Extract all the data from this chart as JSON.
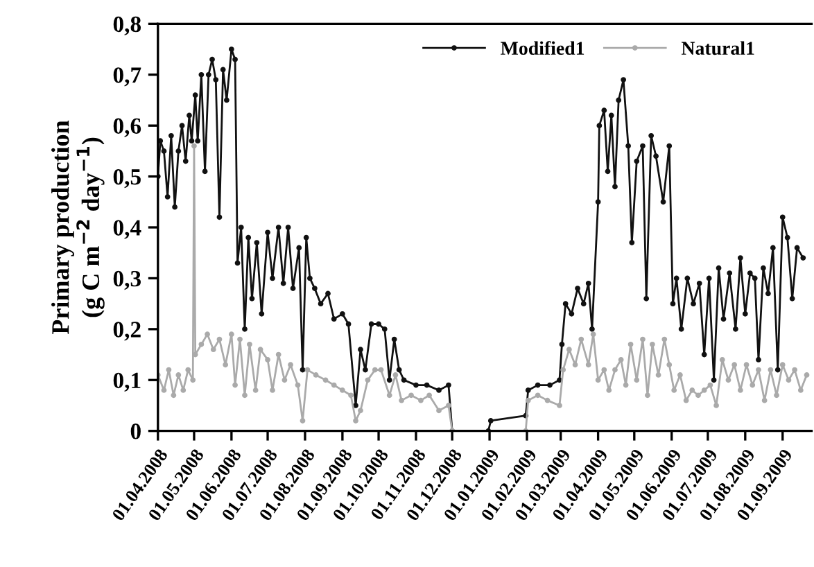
{
  "chart_data": {
    "type": "line",
    "ylabel": "Primary production\n(g C m$^{−2}$ day$^{−1}$)",
    "series": [
      {
        "name": "Modified1",
        "color": "#111111",
        "x": [
          "2008-04-01",
          "2008-04-03",
          "2008-04-06",
          "2008-04-09",
          "2008-04-12",
          "2008-04-15",
          "2008-04-18",
          "2008-04-21",
          "2008-04-24",
          "2008-04-27",
          "2008-04-29",
          "2008-05-02",
          "2008-05-04",
          "2008-05-07",
          "2008-05-10",
          "2008-05-13",
          "2008-05-16",
          "2008-05-19",
          "2008-05-22",
          "2008-05-25",
          "2008-05-28",
          "2008-06-01",
          "2008-06-04",
          "2008-06-06",
          "2008-06-09",
          "2008-06-12",
          "2008-06-15",
          "2008-06-18",
          "2008-06-22",
          "2008-06-26",
          "2008-07-01",
          "2008-07-05",
          "2008-07-10",
          "2008-07-14",
          "2008-07-18",
          "2008-07-22",
          "2008-07-27",
          "2008-07-30",
          "2008-08-02",
          "2008-08-05",
          "2008-08-09",
          "2008-08-14",
          "2008-08-20",
          "2008-08-25",
          "2008-09-01",
          "2008-09-06",
          "2008-09-12",
          "2008-09-16",
          "2008-09-20",
          "2008-09-25",
          "2008-10-01",
          "2008-10-06",
          "2008-10-10",
          "2008-10-14",
          "2008-10-18",
          "2008-10-22",
          "2008-11-01",
          "2008-11-10",
          "2008-11-20",
          "2008-11-28",
          "2008-12-01",
          "2008-12-31",
          "2009-01-02",
          "2009-01-31",
          "2009-02-02",
          "2009-02-10",
          "2009-02-20",
          "2009-02-28",
          "2009-03-02",
          "2009-03-05",
          "2009-03-10",
          "2009-03-15",
          "2009-03-20",
          "2009-03-24",
          "2009-03-27",
          "2009-04-01",
          "2009-04-02",
          "2009-04-06",
          "2009-04-09",
          "2009-04-12",
          "2009-04-15",
          "2009-04-18",
          "2009-04-22",
          "2009-04-26",
          "2009-04-29",
          "2009-05-03",
          "2009-05-08",
          "2009-05-11",
          "2009-05-15",
          "2009-05-19",
          "2009-05-25",
          "2009-05-30",
          "2009-06-02",
          "2009-06-05",
          "2009-06-09",
          "2009-06-14",
          "2009-06-19",
          "2009-06-24",
          "2009-06-28",
          "2009-07-02",
          "2009-07-06",
          "2009-07-10",
          "2009-07-14",
          "2009-07-19",
          "2009-07-24",
          "2009-07-28",
          "2009-08-01",
          "2009-08-05",
          "2009-08-09",
          "2009-08-12",
          "2009-08-16",
          "2009-08-20",
          "2009-08-24",
          "2009-08-28",
          "2009-09-01",
          "2009-09-05",
          "2009-09-09",
          "2009-09-13",
          "2009-09-18"
        ],
        "values": [
          0.5,
          0.57,
          0.55,
          0.46,
          0.58,
          0.44,
          0.55,
          0.6,
          0.53,
          0.62,
          0.57,
          0.66,
          0.57,
          0.7,
          0.51,
          0.7,
          0.73,
          0.69,
          0.42,
          0.71,
          0.65,
          0.75,
          0.73,
          0.33,
          0.4,
          0.2,
          0.38,
          0.26,
          0.37,
          0.23,
          0.39,
          0.3,
          0.4,
          0.29,
          0.4,
          0.28,
          0.36,
          0.12,
          0.38,
          0.3,
          0.28,
          0.25,
          0.27,
          0.22,
          0.23,
          0.21,
          0.05,
          0.16,
          0.12,
          0.21,
          0.21,
          0.2,
          0.1,
          0.18,
          0.12,
          0.1,
          0.09,
          0.09,
          0.08,
          0.09,
          0.0,
          0.0,
          0.02,
          0.03,
          0.08,
          0.09,
          0.09,
          0.1,
          0.17,
          0.25,
          0.23,
          0.28,
          0.25,
          0.29,
          0.2,
          0.45,
          0.6,
          0.63,
          0.51,
          0.62,
          0.48,
          0.65,
          0.69,
          0.56,
          0.37,
          0.53,
          0.56,
          0.26,
          0.58,
          0.54,
          0.45,
          0.56,
          0.25,
          0.3,
          0.2,
          0.3,
          0.25,
          0.29,
          0.15,
          0.3,
          0.1,
          0.32,
          0.22,
          0.31,
          0.2,
          0.34,
          0.23,
          0.31,
          0.3,
          0.14,
          0.32,
          0.27,
          0.36,
          0.12,
          0.42,
          0.38,
          0.26,
          0.36,
          0.34
        ]
      },
      {
        "name": "Natural1",
        "color": "#aaaaaa",
        "x": [
          "2008-04-01",
          "2008-04-06",
          "2008-04-10",
          "2008-04-14",
          "2008-04-18",
          "2008-04-22",
          "2008-04-26",
          "2008-04-30",
          "2008-05-01",
          "2008-05-02",
          "2008-05-07",
          "2008-05-12",
          "2008-05-17",
          "2008-05-22",
          "2008-05-27",
          "2008-06-01",
          "2008-06-04",
          "2008-06-08",
          "2008-06-12",
          "2008-06-16",
          "2008-06-21",
          "2008-06-25",
          "2008-07-01",
          "2008-07-05",
          "2008-07-10",
          "2008-07-15",
          "2008-07-20",
          "2008-07-26",
          "2008-07-30",
          "2008-08-03",
          "2008-08-10",
          "2008-08-18",
          "2008-08-25",
          "2008-09-01",
          "2008-09-08",
          "2008-09-12",
          "2008-09-16",
          "2008-09-22",
          "2008-09-28",
          "2008-10-03",
          "2008-10-10",
          "2008-10-15",
          "2008-10-20",
          "2008-10-28",
          "2008-11-05",
          "2008-11-12",
          "2008-11-20",
          "2008-11-28",
          "2008-12-01",
          "2009-01-31",
          "2009-02-02",
          "2009-02-10",
          "2009-02-18",
          "2009-02-28",
          "2009-03-03",
          "2009-03-08",
          "2009-03-13",
          "2009-03-18",
          "2009-03-24",
          "2009-03-28",
          "2009-04-01",
          "2009-04-06",
          "2009-04-10",
          "2009-04-15",
          "2009-04-20",
          "2009-04-24",
          "2009-04-28",
          "2009-05-03",
          "2009-05-08",
          "2009-05-12",
          "2009-05-16",
          "2009-05-21",
          "2009-05-26",
          "2009-05-30",
          "2009-06-03",
          "2009-06-08",
          "2009-06-13",
          "2009-06-18",
          "2009-06-23",
          "2009-06-28",
          "2009-07-03",
          "2009-07-08",
          "2009-07-13",
          "2009-07-18",
          "2009-07-23",
          "2009-07-28",
          "2009-08-02",
          "2009-08-07",
          "2009-08-12",
          "2009-08-17",
          "2009-08-22",
          "2009-08-27",
          "2009-09-01",
          "2009-09-06",
          "2009-09-11",
          "2009-09-16",
          "2009-09-21"
        ],
        "values": [
          0.11,
          0.08,
          0.12,
          0.07,
          0.11,
          0.08,
          0.12,
          0.1,
          0.56,
          0.15,
          0.17,
          0.19,
          0.16,
          0.18,
          0.13,
          0.19,
          0.09,
          0.18,
          0.07,
          0.17,
          0.08,
          0.16,
          0.14,
          0.08,
          0.15,
          0.1,
          0.13,
          0.09,
          0.02,
          0.12,
          0.11,
          0.1,
          0.09,
          0.08,
          0.07,
          0.02,
          0.04,
          0.1,
          0.12,
          0.12,
          0.07,
          0.11,
          0.06,
          0.07,
          0.06,
          0.07,
          0.04,
          0.05,
          0.0,
          0.0,
          0.06,
          0.07,
          0.06,
          0.05,
          0.12,
          0.16,
          0.13,
          0.18,
          0.13,
          0.19,
          0.1,
          0.12,
          0.08,
          0.12,
          0.14,
          0.09,
          0.17,
          0.1,
          0.18,
          0.07,
          0.17,
          0.11,
          0.18,
          0.13,
          0.08,
          0.11,
          0.06,
          0.08,
          0.07,
          0.08,
          0.09,
          0.05,
          0.14,
          0.1,
          0.13,
          0.08,
          0.13,
          0.09,
          0.12,
          0.06,
          0.12,
          0.07,
          0.13,
          0.1,
          0.12,
          0.08,
          0.11
        ]
      }
    ],
    "xlim": [
      "2008-04-01",
      "2009-09-25"
    ],
    "xticks": [
      {
        "value": "2008-04-01",
        "label": "01.04.2008"
      },
      {
        "value": "2008-05-01",
        "label": "01.05.2008"
      },
      {
        "value": "2008-06-01",
        "label": "01.06.2008"
      },
      {
        "value": "2008-07-01",
        "label": "01.07.2008"
      },
      {
        "value": "2008-08-01",
        "label": "01.08.2008"
      },
      {
        "value": "2008-09-01",
        "label": "01.09.2008"
      },
      {
        "value": "2008-10-01",
        "label": "01.10.2008"
      },
      {
        "value": "2008-11-01",
        "label": "01.11.2008"
      },
      {
        "value": "2008-12-01",
        "label": "01.12.2008"
      },
      {
        "value": "2009-01-01",
        "label": "01.01.2009"
      },
      {
        "value": "2009-02-01",
        "label": "01.02.2009"
      },
      {
        "value": "2009-03-01",
        "label": "01.03.2009"
      },
      {
        "value": "2009-04-01",
        "label": "01.04.2009"
      },
      {
        "value": "2009-05-01",
        "label": "01.05.2009"
      },
      {
        "value": "2009-06-01",
        "label": "01.06.2009"
      },
      {
        "value": "2009-07-01",
        "label": "01.07.2009"
      },
      {
        "value": "2009-08-01",
        "label": "01.08.2009"
      },
      {
        "value": "2009-09-01",
        "label": "01.09.2009"
      }
    ],
    "ylim": [
      0,
      0.8
    ],
    "yticks": [
      0,
      {
        "value": 0.1,
        "label": "0,1"
      },
      {
        "value": 0.2,
        "label": "0,2"
      },
      {
        "value": 0.3,
        "label": "0,3"
      },
      {
        "value": 0.4,
        "label": "0,4"
      },
      {
        "value": 0.5,
        "label": "0,5"
      },
      {
        "value": 0.6,
        "label": "0,6"
      },
      {
        "value": 0.7,
        "label": "0,7"
      },
      {
        "value": 0.8,
        "label": "0,8"
      }
    ],
    "grid": false,
    "legend": "top right",
    "marker": "circle",
    "line_style": "solid"
  }
}
